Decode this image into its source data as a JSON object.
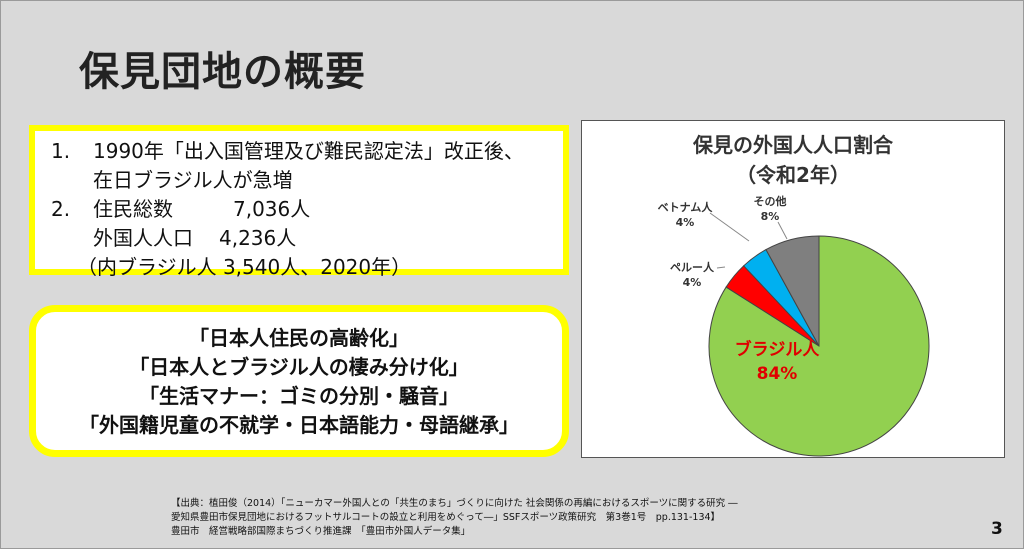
{
  "title": "保見団地の概要",
  "box1": {
    "items": [
      {
        "num": "1.",
        "text": "1990年「出入国管理及び難民認定法」改正後、"
      },
      {
        "cont": "在日ブラジル人が急増"
      },
      {
        "num": "2.",
        "label": "住民総数",
        "value": "7,036人"
      },
      {
        "label": "外国人人口",
        "value": "4,236人"
      },
      {
        "paren": "（内ブラジル人 3,540人、2020年）"
      }
    ]
  },
  "box2": {
    "lines": [
      "「日本人住民の高齢化」",
      "「日本人とブラジル人の棲み分け化」",
      "「生活マナー：ゴミの分別・騒音」",
      "「外国籍児童の不就学・日本語能力・母語継承」"
    ]
  },
  "chart_data": {
    "type": "pie",
    "title_line1": "保見の外国人人口割合",
    "title_line2": "（令和2年）",
    "slices": [
      {
        "label": "ブラジル人",
        "value": 84,
        "display": "84%",
        "color": "#92d050"
      },
      {
        "label": "ペルー人",
        "value": 4,
        "display": "4%",
        "color": "#ff0000"
      },
      {
        "label": "ベトナム人",
        "value": 4,
        "display": "4%",
        "color": "#00b0f0"
      },
      {
        "label": "その他",
        "value": 8,
        "display": "8%",
        "color": "#7f7f7f"
      }
    ]
  },
  "footer": {
    "line1": "【出典：植田俊（2014）「ニューカマー外国人との「共生のまち」づくりに向けた 社会関係の再編におけるスポーツに関する研究 ―",
    "line2": "愛知県豊田市保見団地におけるフットサルコートの設立と利用をめぐって―」SSFスポーツ政策研究　第3巻1号　pp.131-134】",
    "line3": "豊田市　経営戦略部国際まちづくり推進課　「豊田市外国人データ集」"
  },
  "page_number": "3"
}
